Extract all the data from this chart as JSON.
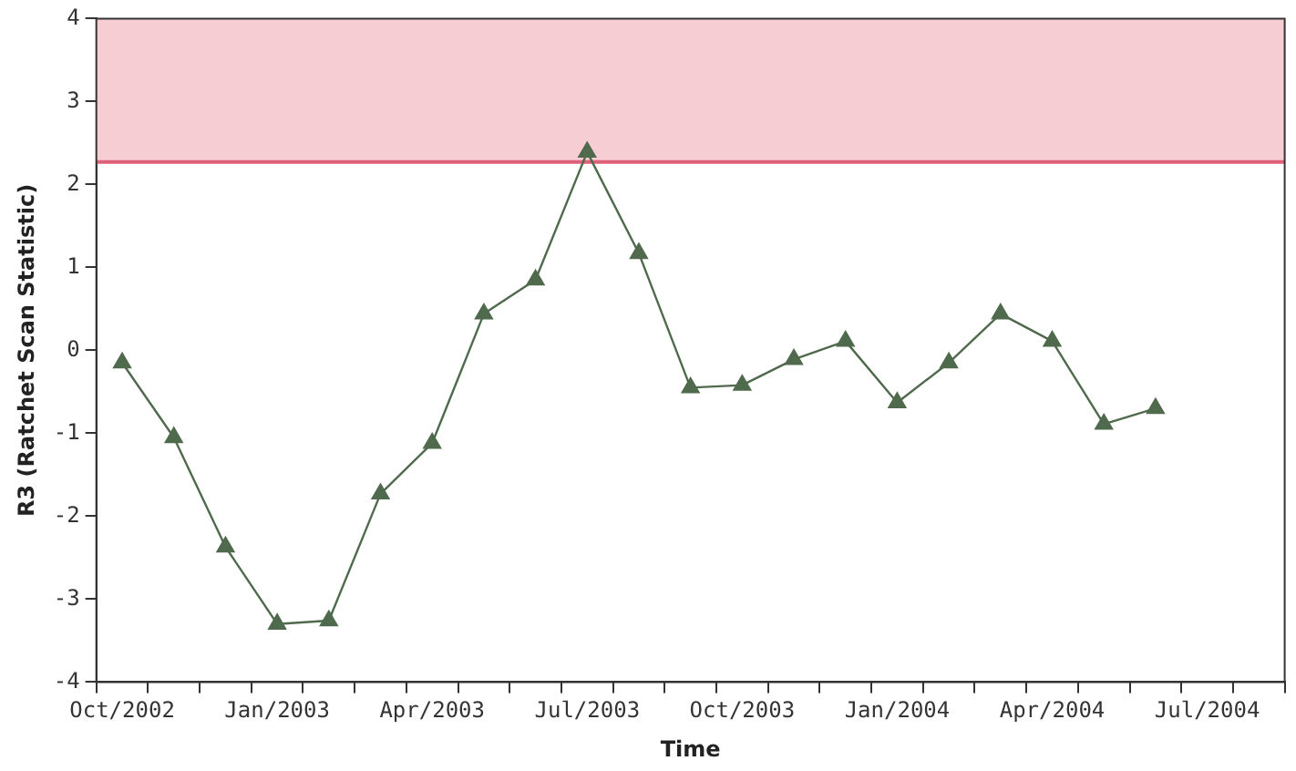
{
  "chart_data": {
    "type": "line",
    "xlabel": "Time",
    "ylabel": "R3 (Ratchet Scan Statistic)",
    "categories": [
      "Oct/2002",
      null,
      null,
      "Jan/2003",
      null,
      null,
      "Apr/2003",
      null,
      null,
      "Jul/2003",
      null,
      null,
      "Oct/2003",
      null,
      null,
      "Jan/2004",
      null,
      null,
      "Apr/2004",
      null,
      null,
      "Jul/2004",
      null
    ],
    "series": [
      {
        "color": "#4f6a4c",
        "values": [
          -0.15,
          -1.05,
          -2.37,
          -3.3,
          -3.26,
          -1.73,
          -1.12,
          0.44,
          0.85,
          2.39,
          1.17,
          -0.45,
          -0.42,
          -0.11,
          0.11,
          -0.63,
          -0.15,
          0.44,
          0.11,
          -0.89,
          -0.7,
          null,
          null
        ]
      }
    ],
    "ylim": [
      -4,
      4
    ],
    "yticks": [
      -4,
      -3,
      -2,
      -1,
      0,
      1,
      2,
      3,
      4
    ],
    "bands": [
      {
        "axis": "y",
        "from": 2.27,
        "to": 4,
        "color": "#f5cdd3"
      }
    ],
    "ref_lines": [
      {
        "axis": "y",
        "value": 2.27,
        "color": "#e0607a"
      }
    ],
    "marker": "triangle",
    "line_style": "solid",
    "grid": false,
    "legend": false
  }
}
